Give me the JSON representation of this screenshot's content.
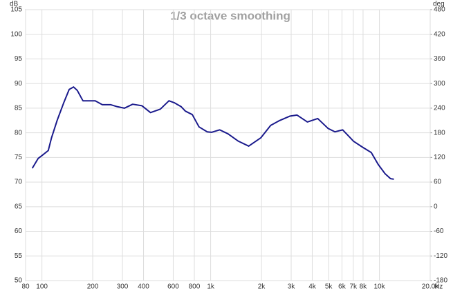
{
  "chart_data": {
    "type": "line",
    "title": "1/3 octave smoothing",
    "y_label": "dB",
    "y2_label": "deg",
    "x_label": "Hz",
    "log_x": true,
    "grid": true,
    "xlim": [
      80,
      20000
    ],
    "ylim": [
      50,
      105
    ],
    "y2lim": [
      -180,
      480
    ],
    "xticks": [
      80,
      100,
      200,
      300,
      400,
      600,
      800,
      {
        "value": 1000,
        "label": "1k"
      },
      {
        "value": 2000,
        "label": "2k"
      },
      {
        "value": 3000,
        "label": "3k"
      },
      {
        "value": 4000,
        "label": "4k"
      },
      {
        "value": 5000,
        "label": "5k"
      },
      {
        "value": 6000,
        "label": "6k"
      },
      {
        "value": 7000,
        "label": "7k"
      },
      {
        "value": 8000,
        "label": "8k"
      },
      {
        "value": 10000,
        "label": "10k"
      },
      {
        "value": 20000,
        "label": "20.0k"
      }
    ],
    "yticks": [
      50,
      55,
      60,
      65,
      70,
      75,
      80,
      85,
      90,
      95,
      100,
      105
    ],
    "y2ticks": [
      -180,
      -120,
      -60,
      0,
      60,
      120,
      180,
      240,
      300,
      360,
      420,
      480
    ],
    "series": [
      {
        "color": "#1a1a8c",
        "x": [
          88,
          95,
          101,
          109,
          114,
          123,
          135,
          145,
          154,
          162,
          175,
          192,
          207,
          228,
          256,
          280,
          308,
          345,
          391,
          440,
          503,
          566,
          609,
          669,
          708,
          778,
          853,
          954,
          1012,
          1132,
          1266,
          1459,
          1680,
          1985,
          2268,
          2564,
          2957,
          3250,
          3743,
          4310,
          4960,
          5455,
          6056,
          7020,
          7930,
          8950,
          9830,
          10800,
          11640,
          12100
        ],
        "values": [
          72.9,
          74.8,
          75.5,
          76.4,
          79.0,
          82.5,
          86.2,
          88.8,
          89.3,
          88.6,
          86.5,
          86.5,
          86.5,
          85.7,
          85.7,
          85.3,
          85.0,
          85.8,
          85.5,
          84.1,
          84.8,
          86.5,
          86.1,
          85.3,
          84.4,
          83.7,
          81.2,
          80.2,
          80.1,
          80.6,
          79.8,
          78.3,
          77.3,
          79.0,
          81.5,
          82.5,
          83.4,
          83.6,
          82.2,
          82.9,
          80.9,
          80.2,
          80.6,
          78.3,
          77.1,
          76.0,
          73.6,
          71.7,
          70.7,
          70.6
        ]
      }
    ]
  }
}
